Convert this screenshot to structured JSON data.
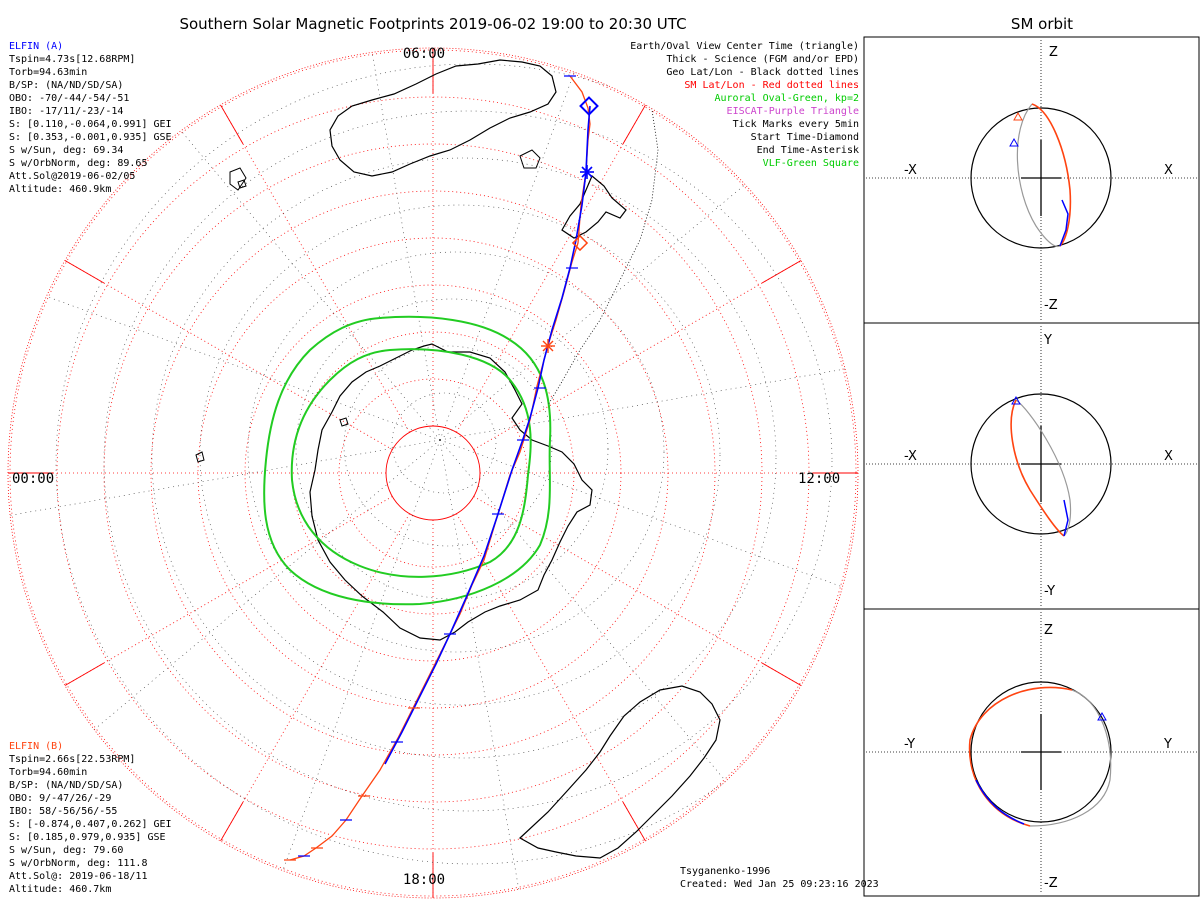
{
  "title": "Southern Solar Magnetic Footprints 2019-06-02 19:00 to 20:30 UTC",
  "side_title": "SM orbit",
  "mlt_labels": {
    "top": "06:00",
    "left": "00:00",
    "right": "12:00",
    "bottom": "18:00"
  },
  "elfin_a": {
    "name": "ELFIN (A)",
    "lines": [
      "Tspin=4.73s[12.68RPM]",
      "Torb=94.63min",
      "B/SP: (NA/ND/SD/SA)",
      "OBO: -70/-44/-54/-51",
      "IBO: -17/11/-23/-14",
      "S: [0.110,-0.064,0.991] GEI",
      "S: [0.353,-0.001,0.935] GSE",
      "S w/Sun, deg: 69.34",
      "S w/OrbNorm, deg: 89.65",
      "Att.Sol@2019-06-02/05",
      "Altitude: 460.9km"
    ]
  },
  "elfin_b": {
    "name": "ELFIN (B)",
    "lines": [
      "Tspin=2.66s[22.53RPM]",
      "Torb=94.60min",
      "B/SP: (NA/ND/SD/SA)",
      "OBO: 9/-47/26/-29",
      "IBO: 58/-56/56/-55",
      "S: [-0.874,0.407,0.262] GEI",
      "S: [0.185,0.979,0.935] GSE",
      "S w/Sun, deg: 79.60",
      "S w/OrbNorm, deg: 111.8",
      "Att.Sol@: 2019-06-18/11",
      "Altitude: 460.7km"
    ]
  },
  "legend": [
    {
      "text": "Earth/Oval View Center Time (triangle)",
      "color": "#000000"
    },
    {
      "text": "Thick - Science (FGM and/or EPD)",
      "color": "#000000"
    },
    {
      "text": "Geo Lat/Lon - Black dotted lines",
      "color": "#000000"
    },
    {
      "text": "SM Lat/Lon - Red dotted lines",
      "color": "#ff0000"
    },
    {
      "text": "Auroral Oval-Green, kp=2",
      "color": "#00cc00"
    },
    {
      "text": "EISCAT-Purple Triangle",
      "color": "#cc44cc"
    },
    {
      "text": "Tick Marks every 5min",
      "color": "#000000"
    },
    {
      "text": "Start Time-Diamond",
      "color": "#000000"
    },
    {
      "text": "End Time-Asterisk",
      "color": "#000000"
    },
    {
      "text": "VLF-Green Square",
      "color": "#00cc00"
    }
  ],
  "footer": {
    "model": "Tsyganenko-1996",
    "created": "Created: Wed Jan 25 09:23:16 2023"
  },
  "panels": [
    {
      "name": "xz",
      "top": "Z",
      "bottom": "-Z",
      "left": "-X",
      "right": "X"
    },
    {
      "name": "xy",
      "top": "Y",
      "bottom": "-Y",
      "left": "-X",
      "right": "X"
    },
    {
      "name": "yz",
      "top": "Z",
      "bottom": "-Z",
      "left": "-Y",
      "right": "Y"
    }
  ],
  "colors": {
    "elfin_a": "#0000ff",
    "elfin_b": "#ff4411",
    "oval": "#22cc22",
    "sm_grid": "#ff0000",
    "geo": "#000000",
    "orbit_gray": "#999999"
  }
}
